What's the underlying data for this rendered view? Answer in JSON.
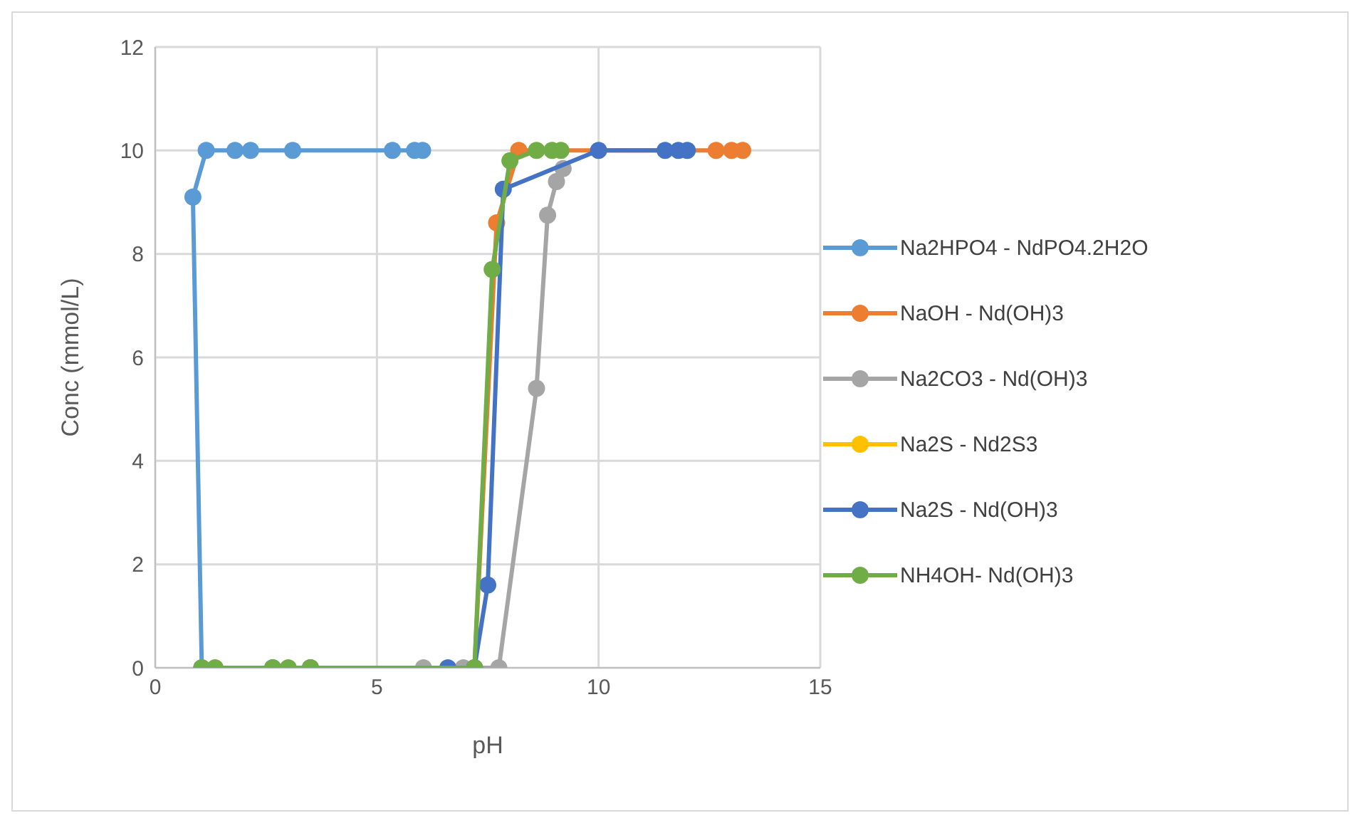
{
  "chart_data": {
    "type": "line",
    "xlabel": "pH",
    "ylabel": "Conc (mmol/L)",
    "xlim": [
      0,
      15
    ],
    "xticks": [
      0,
      5,
      10,
      15
    ],
    "ylim": [
      0,
      12
    ],
    "yticks": [
      0,
      2,
      4,
      6,
      8,
      10,
      12
    ],
    "grid": true,
    "legend": "right",
    "marker": "circle",
    "line_style": "solid",
    "series": [
      {
        "name": "Na2HPO4 - NdPO4.2H2O",
        "color": "#5b9bd5",
        "x": [
          1.05,
          0.85,
          1.15,
          1.8,
          2.15,
          3.1,
          5.35,
          5.85,
          6.03
        ],
        "values": [
          0,
          9.1,
          10,
          10,
          10,
          10,
          10,
          10,
          10
        ]
      },
      {
        "name": "NaOH - Nd(OH)3",
        "color": "#ed7d31",
        "x": [
          3.5,
          7.2,
          7.7,
          8.2,
          10,
          12.65,
          13,
          13.25
        ],
        "values": [
          0,
          0,
          8.6,
          10,
          null,
          10,
          10,
          10
        ]
      },
      {
        "name": "Na2CO3 - Nd(OH)3",
        "color": "#a5a5a5",
        "x": [
          6.05,
          6.95,
          7.75,
          8.6,
          8.85,
          9.05,
          9.2
        ],
        "values": [
          0,
          0,
          0,
          5.4,
          8.75,
          9.4,
          9.65
        ]
      },
      {
        "name": "Na2S - Nd2S3",
        "color": "#ffc000"
      },
      {
        "name": "Na2S - Nd(OH)3",
        "color": "#4472c4",
        "x": [
          2.65,
          3.5,
          6.6,
          7.2,
          7.5,
          7.85,
          10,
          11.5,
          11.8,
          12.0
        ],
        "values": [
          0,
          0,
          0,
          0,
          1.6,
          9.25,
          10,
          10,
          10,
          10
        ]
      },
      {
        "name": "NH4OH- Nd(OH)3",
        "color": "#70ad47",
        "x": [
          1.05,
          1.35,
          2.65,
          3.0,
          3.5,
          7.2,
          7.6,
          8.0,
          8.6,
          8.95,
          9.15
        ],
        "values": [
          0,
          0,
          0,
          0,
          0,
          0,
          7.7,
          9.8,
          10,
          10,
          10
        ]
      }
    ]
  }
}
